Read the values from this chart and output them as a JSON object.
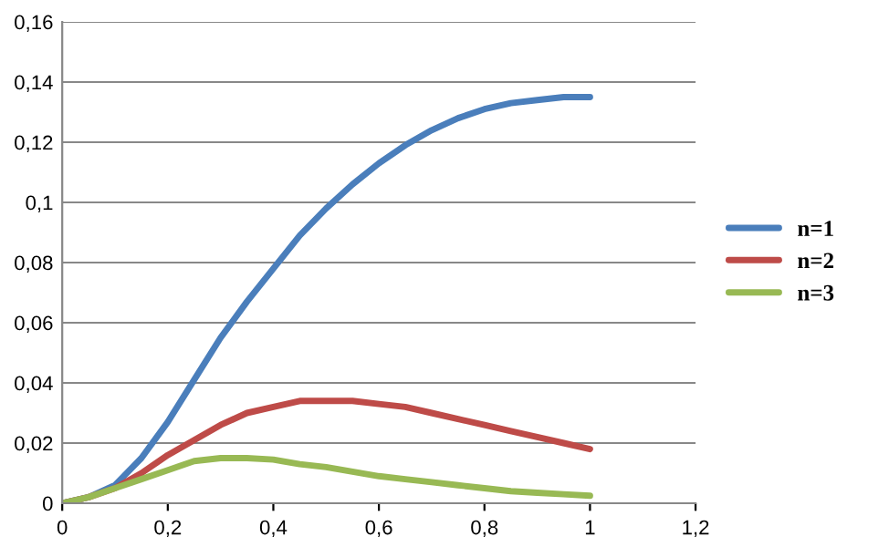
{
  "chart_data": {
    "type": "line",
    "x": [
      0,
      0.05,
      0.1,
      0.15,
      0.2,
      0.25,
      0.3,
      0.35,
      0.4,
      0.45,
      0.5,
      0.55,
      0.6,
      0.65,
      0.7,
      0.75,
      0.8,
      0.85,
      0.9,
      0.95,
      1.0
    ],
    "series": [
      {
        "name": "n=1",
        "color": "#4a7ebb",
        "values": [
          0,
          0.002,
          0.006,
          0.015,
          0.027,
          0.041,
          0.055,
          0.067,
          0.078,
          0.089,
          0.098,
          0.106,
          0.113,
          0.119,
          0.124,
          0.128,
          0.131,
          0.133,
          0.134,
          0.135,
          0.135
        ]
      },
      {
        "name": "n=2",
        "color": "#be4b48",
        "values": [
          0,
          0.002,
          0.005,
          0.01,
          0.016,
          0.021,
          0.026,
          0.03,
          0.032,
          0.034,
          0.034,
          0.034,
          0.033,
          0.032,
          0.03,
          0.028,
          0.026,
          0.024,
          0.022,
          0.02,
          0.018
        ]
      },
      {
        "name": "n=3",
        "color": "#98b954",
        "values": [
          0,
          0.002,
          0.005,
          0.008,
          0.011,
          0.014,
          0.015,
          0.015,
          0.0145,
          0.013,
          0.012,
          0.0105,
          0.009,
          0.008,
          0.007,
          0.006,
          0.005,
          0.004,
          0.0035,
          0.003,
          0.0025
        ]
      }
    ],
    "xlim": [
      0,
      1.2
    ],
    "xticks": [
      0,
      {
        "value": 0.2,
        "label": "0,2"
      },
      {
        "value": 0.4,
        "label": "0,4"
      },
      {
        "value": 0.6,
        "label": "0,6"
      },
      {
        "value": 0.8,
        "label": "0,8"
      },
      1,
      {
        "value": 1.2,
        "label": "1,2"
      }
    ],
    "ylim": [
      0,
      0.16
    ],
    "yticks": [
      0,
      {
        "value": 0.02,
        "label": "0,02"
      },
      {
        "value": 0.04,
        "label": "0,04"
      },
      {
        "value": 0.06,
        "label": "0,06"
      },
      {
        "value": 0.08,
        "label": "0,08"
      },
      {
        "value": 0.1,
        "label": "0,1"
      },
      {
        "value": 0.12,
        "label": "0,12"
      },
      {
        "value": 0.14,
        "label": "0,14"
      },
      {
        "value": 0.16,
        "label": "0,16"
      }
    ],
    "grid": "y",
    "legend": "right",
    "marker": "none",
    "line_style": "solid"
  }
}
